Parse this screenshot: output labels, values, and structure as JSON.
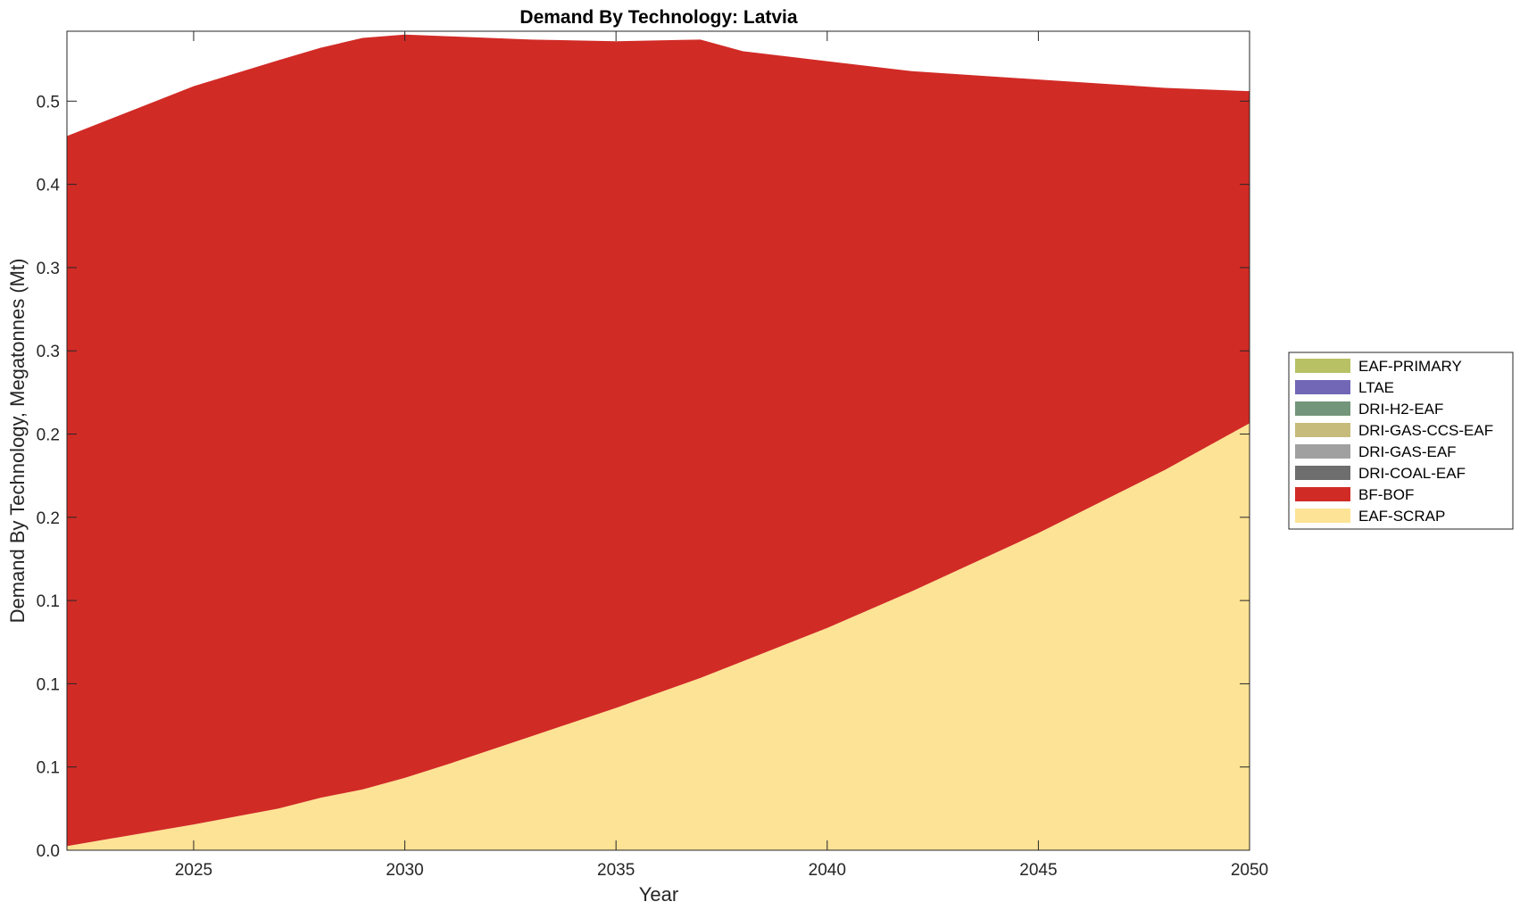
{
  "chart_data": {
    "type": "area",
    "title": "Demand By Technology: Latvia",
    "xlabel": "Year",
    "ylabel": "Demand By Technology, Megatonnes (Mt)",
    "xlim": [
      2022,
      2050
    ],
    "ylim": [
      0,
      0.492
    ],
    "x_ticks": [
      2025,
      2030,
      2035,
      2040,
      2045,
      2050
    ],
    "x_tick_labels": [
      "2025",
      "2030",
      "2035",
      "2040",
      "2045",
      "2050"
    ],
    "y_ticks": [
      0,
      0.05,
      0.1,
      0.15,
      0.2,
      0.25,
      0.3,
      0.35,
      0.4,
      0.45
    ],
    "y_tick_labels": [
      "0.0",
      "0.1",
      "0.1",
      "0.1",
      "0.2",
      "0.2",
      "0.3",
      "0.3",
      "0.4",
      "0.5"
    ],
    "grid": false,
    "legend_position": "right",
    "x": [
      2022,
      2025,
      2027,
      2028,
      2029,
      2030,
      2031,
      2033,
      2035,
      2037,
      2038,
      2040,
      2042,
      2045,
      2048,
      2050
    ],
    "series": [
      {
        "name": "EAF-SCRAP",
        "color": "#FDE395",
        "values": [
          0.0025,
          0.0155,
          0.025,
          0.0315,
          0.0365,
          0.0435,
          0.0515,
          0.0685,
          0.0855,
          0.1035,
          0.1135,
          0.1335,
          0.1555,
          0.1905,
          0.2285,
          0.2565
        ]
      },
      {
        "name": "BF-BOF",
        "color": "#D12B26",
        "values": [
          0.4265,
          0.4435,
          0.4495,
          0.4505,
          0.4515,
          0.4465,
          0.4375,
          0.4185,
          0.4005,
          0.3835,
          0.3665,
          0.3405,
          0.3125,
          0.2725,
          0.2295,
          0.1995
        ]
      },
      {
        "name": "DRI-COAL-EAF",
        "color": "#6E6E6E",
        "values": [
          0,
          0,
          0,
          0,
          0,
          0,
          0,
          0,
          0,
          0,
          0,
          0,
          0,
          0,
          0,
          0
        ]
      },
      {
        "name": "DRI-GAS-EAF",
        "color": "#A0A0A0",
        "values": [
          0,
          0,
          0,
          0,
          0,
          0,
          0,
          0,
          0,
          0,
          0,
          0,
          0,
          0,
          0,
          0
        ]
      },
      {
        "name": "DRI-GAS-CCS-EAF",
        "color": "#C6BB7B",
        "values": [
          0,
          0,
          0,
          0,
          0,
          0,
          0,
          0,
          0,
          0,
          0,
          0,
          0,
          0,
          0,
          0
        ]
      },
      {
        "name": "DRI-H2-EAF",
        "color": "#73957A",
        "values": [
          0,
          0,
          0,
          0,
          0,
          0,
          0,
          0,
          0,
          0,
          0,
          0,
          0,
          0,
          0,
          0
        ]
      },
      {
        "name": "LTAE",
        "color": "#7167B6",
        "values": [
          0,
          0,
          0,
          0,
          0,
          0,
          0,
          0,
          0,
          0,
          0,
          0,
          0,
          0,
          0,
          0
        ]
      },
      {
        "name": "EAF-PRIMARY",
        "color": "#B8C265",
        "values": [
          0,
          0,
          0,
          0,
          0,
          0,
          0,
          0,
          0,
          0,
          0,
          0,
          0,
          0,
          0,
          0
        ]
      }
    ],
    "legend_order": [
      "EAF-PRIMARY",
      "LTAE",
      "DRI-H2-EAF",
      "DRI-GAS-CCS-EAF",
      "DRI-GAS-EAF",
      "DRI-COAL-EAF",
      "BF-BOF",
      "EAF-SCRAP"
    ]
  }
}
